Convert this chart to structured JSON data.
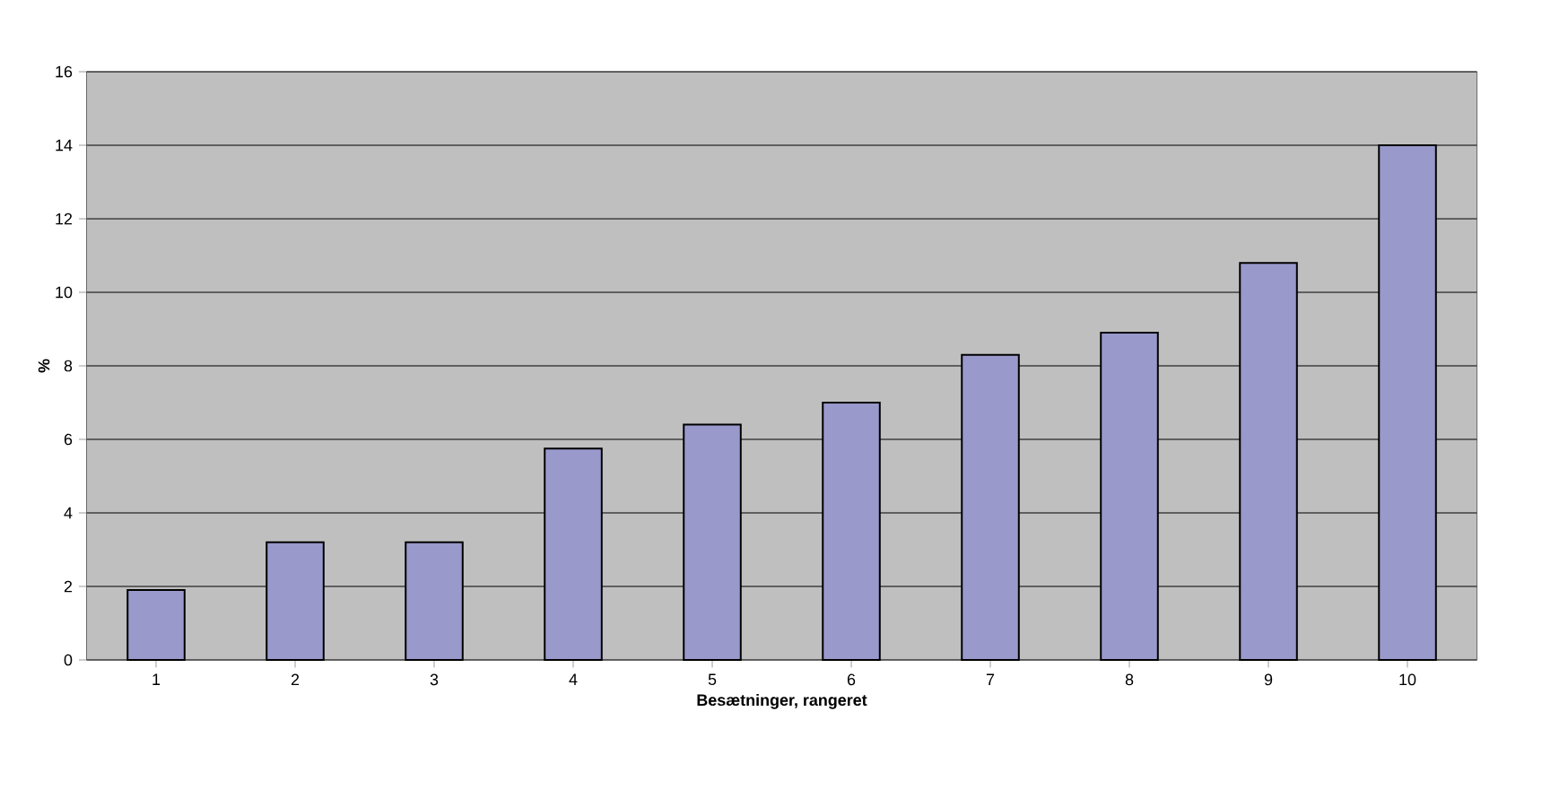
{
  "chart_data": {
    "type": "bar",
    "xlabel": "Besætninger, rangeret",
    "ylabel": "%",
    "categories": [
      "1",
      "2",
      "3",
      "4",
      "5",
      "6",
      "7",
      "8",
      "9",
      "10"
    ],
    "values": [
      1.9,
      3.2,
      3.2,
      5.75,
      6.4,
      7.0,
      8.3,
      8.9,
      10.8,
      14.0
    ],
    "color": "#9999cc",
    "ylim": [
      0,
      16
    ],
    "yticks": [
      0,
      2,
      4,
      6,
      8,
      10,
      12,
      14,
      16
    ],
    "grid": "y"
  }
}
